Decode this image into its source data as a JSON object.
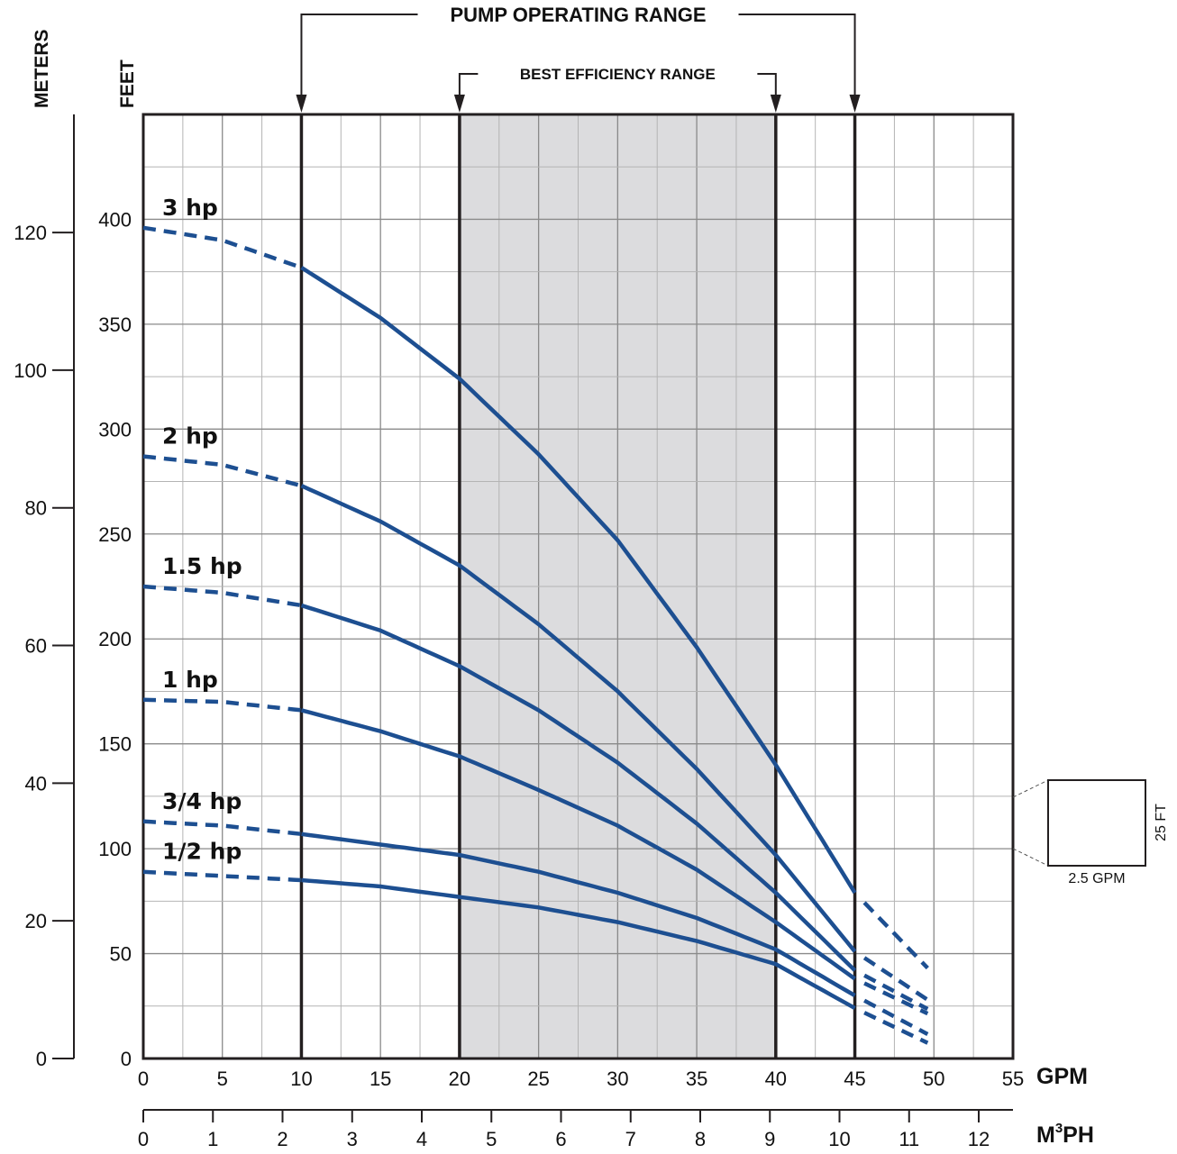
{
  "chart_data": {
    "type": "line",
    "annotations": {
      "operating_range": {
        "label": "PUMP OPERATING RANGE",
        "x_range": [
          10,
          45
        ]
      },
      "best_efficiency_range": {
        "label": "BEST EFFICIENCY RANGE",
        "x_range": [
          20,
          40
        ]
      }
    },
    "axes": {
      "x_primary": {
        "label": "GPM",
        "range": [
          0,
          55
        ],
        "ticks": [
          "0",
          "5",
          "10",
          "15",
          "20",
          "25",
          "30",
          "35",
          "40",
          "45",
          "50",
          "55"
        ]
      },
      "x_secondary": {
        "label": "M",
        "label_sup": "3",
        "label_suffix": "PH",
        "range": [
          0,
          12.5
        ],
        "ticks": [
          "0",
          "1",
          "2",
          "3",
          "4",
          "5",
          "6",
          "7",
          "8",
          "9",
          "10",
          "11",
          "12"
        ]
      },
      "y_feet": {
        "label": "FEET",
        "range": [
          0,
          450
        ],
        "ticks": [
          "0",
          "50",
          "100",
          "150",
          "200",
          "250",
          "300",
          "350",
          "400"
        ]
      },
      "y_meters": {
        "label": "METERS",
        "range": [
          0,
          137.16
        ],
        "ticks": [
          "0",
          "20",
          "40",
          "60",
          "80",
          "100",
          "120"
        ]
      }
    },
    "grid": true,
    "legend_box": {
      "x_label": "2.5 GPM",
      "y_label": "25 FT"
    },
    "series": [
      {
        "name": "3 hp",
        "x": [
          0,
          5,
          10,
          15,
          20,
          25,
          30,
          35,
          40,
          45,
          50
        ],
        "y": [
          396,
          390,
          377,
          353,
          324,
          288,
          247,
          196,
          140,
          79,
          40
        ]
      },
      {
        "name": "2 hp",
        "x": [
          0,
          5,
          10,
          15,
          20,
          25,
          30,
          35,
          40,
          45,
          50
        ],
        "y": [
          287,
          283,
          273,
          256,
          235,
          207,
          175,
          138,
          97,
          51,
          26
        ]
      },
      {
        "name": "1.5 hp",
        "x": [
          0,
          5,
          10,
          15,
          20,
          25,
          30,
          35,
          40,
          45,
          50
        ],
        "y": [
          225,
          222,
          216,
          204,
          187,
          166,
          141,
          112,
          79,
          42,
          22
        ]
      },
      {
        "name": "1 hp",
        "x": [
          0,
          5,
          10,
          15,
          20,
          25,
          30,
          35,
          40,
          45,
          50
        ],
        "y": [
          171,
          170,
          166,
          156,
          144,
          128,
          111,
          90,
          65,
          38,
          20
        ]
      },
      {
        "name": "3/4 hp",
        "x": [
          0,
          5,
          10,
          15,
          20,
          25,
          30,
          35,
          40,
          45,
          50
        ],
        "y": [
          113,
          111,
          107,
          102,
          97,
          89,
          79,
          67,
          52,
          30,
          10
        ]
      },
      {
        "name": "1/2 hp",
        "x": [
          0,
          5,
          10,
          15,
          20,
          25,
          30,
          35,
          40,
          45,
          50
        ],
        "y": [
          89,
          87,
          85,
          82,
          77,
          72,
          65,
          56,
          45,
          24,
          6
        ]
      }
    ]
  }
}
